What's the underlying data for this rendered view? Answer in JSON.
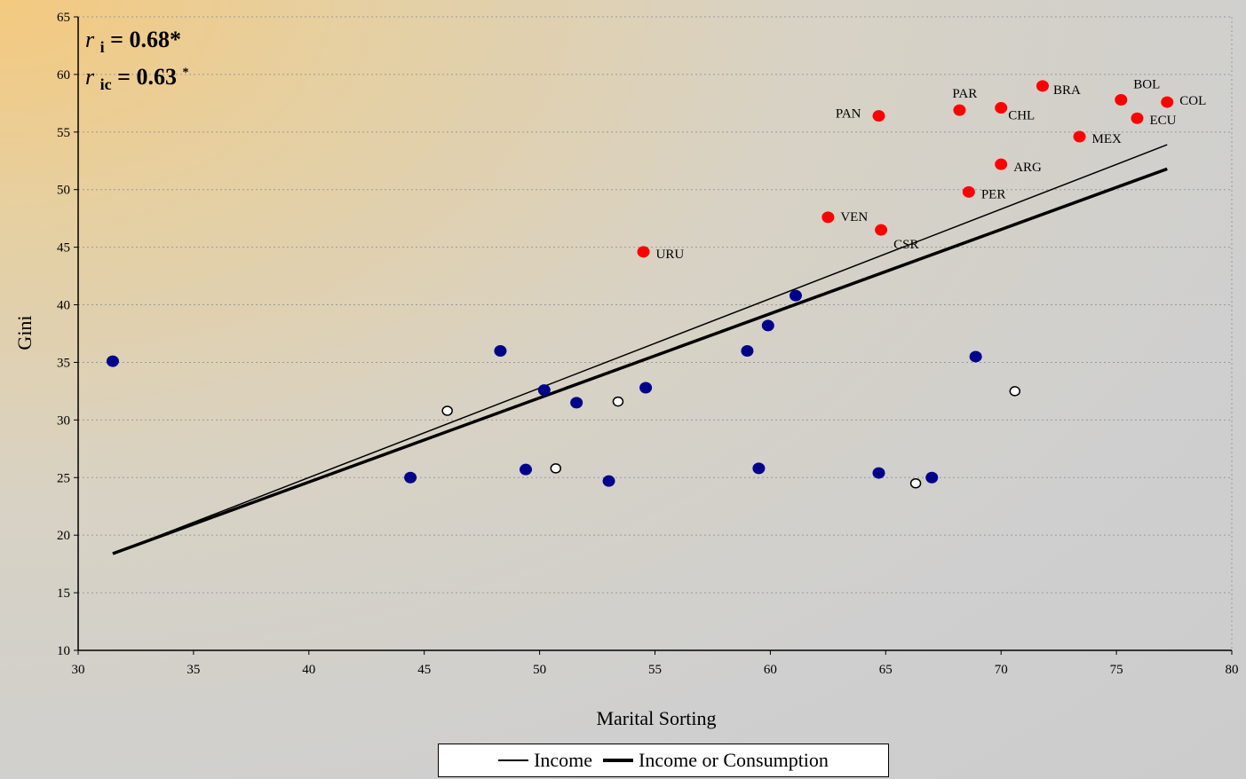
{
  "chart_data": {
    "type": "scatter",
    "xlabel": "Marital Sorting",
    "ylabel": "Gini",
    "xlim": [
      30,
      80
    ],
    "ylim": [
      10,
      65
    ],
    "xticks": [
      30,
      35,
      40,
      45,
      50,
      55,
      60,
      65,
      70,
      75,
      80
    ],
    "yticks": [
      10,
      15,
      20,
      25,
      30,
      35,
      40,
      45,
      50,
      55,
      60,
      65
    ],
    "grid": "horizontal dotted",
    "legend_position": "bottom",
    "annotations": {
      "r_i": {
        "symbol": "r",
        "subscript": "i",
        "value": "= 0.68*"
      },
      "r_ic": {
        "symbol": "r",
        "subscript": "ic",
        "value": "= 0.63",
        "superscript": "*"
      }
    },
    "colors": {
      "latin": "#ff0000",
      "other": "#00008b",
      "hollow": "#ffffff"
    },
    "series": [
      {
        "group": "latin-america",
        "points": [
          {
            "x": 54.5,
            "y": 44.6,
            "label": "URU"
          },
          {
            "x": 62.5,
            "y": 47.6,
            "label": "VEN"
          },
          {
            "x": 64.8,
            "y": 46.5,
            "label": "CSR"
          },
          {
            "x": 64.7,
            "y": 56.4,
            "label": "PAN"
          },
          {
            "x": 68.2,
            "y": 56.9,
            "label": "PAR"
          },
          {
            "x": 70.0,
            "y": 57.1,
            "label": "CHL"
          },
          {
            "x": 71.8,
            "y": 59.0,
            "label": "BRA"
          },
          {
            "x": 68.6,
            "y": 49.8,
            "label": "PER"
          },
          {
            "x": 70.0,
            "y": 52.2,
            "label": "ARG"
          },
          {
            "x": 73.4,
            "y": 54.6,
            "label": "MEX"
          },
          {
            "x": 75.2,
            "y": 57.8,
            "label": "BOL"
          },
          {
            "x": 75.9,
            "y": 56.2,
            "label": "ECU"
          },
          {
            "x": 77.2,
            "y": 57.6,
            "label": "COL"
          }
        ]
      },
      {
        "group": "other-filled",
        "points": [
          {
            "x": 31.5,
            "y": 35.1
          },
          {
            "x": 44.4,
            "y": 25.0
          },
          {
            "x": 48.3,
            "y": 36.0
          },
          {
            "x": 49.4,
            "y": 25.7
          },
          {
            "x": 50.2,
            "y": 32.6
          },
          {
            "x": 51.6,
            "y": 31.5
          },
          {
            "x": 53.0,
            "y": 24.7
          },
          {
            "x": 54.6,
            "y": 32.8
          },
          {
            "x": 59.0,
            "y": 36.0
          },
          {
            "x": 59.5,
            "y": 25.8
          },
          {
            "x": 59.9,
            "y": 38.2
          },
          {
            "x": 61.1,
            "y": 40.8
          },
          {
            "x": 64.7,
            "y": 25.4
          },
          {
            "x": 67.0,
            "y": 25.0
          },
          {
            "x": 68.9,
            "y": 35.5
          }
        ]
      },
      {
        "group": "other-hollow",
        "points": [
          {
            "x": 46.0,
            "y": 30.8
          },
          {
            "x": 50.7,
            "y": 25.8
          },
          {
            "x": 53.4,
            "y": 31.6
          },
          {
            "x": 66.3,
            "y": 24.5
          },
          {
            "x": 70.6,
            "y": 32.5
          }
        ]
      }
    ],
    "fit_lines": [
      {
        "name": "Income",
        "x": [
          31.5,
          77.2
        ],
        "y": [
          18.4,
          53.9
        ]
      },
      {
        "name": "Income or Consumption",
        "x": [
          31.5,
          77.2
        ],
        "y": [
          18.4,
          51.8
        ]
      }
    ]
  }
}
